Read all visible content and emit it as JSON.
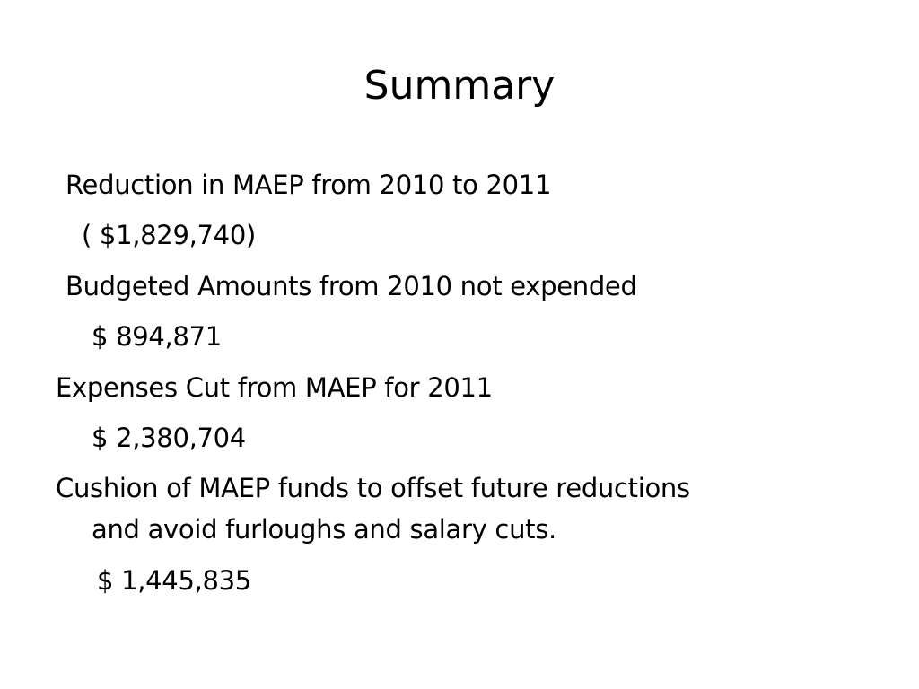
{
  "slide": {
    "title": "Summary",
    "lines": [
      "Reduction in MAEP from 2010  to 2011",
      "( $1,829,740)",
      "Budgeted Amounts from 2010 not expended",
      "$ 894,871",
      "Expenses Cut from MAEP for 2011",
      "$ 2,380,704",
      "Cushion of MAEP funds to offset future reductions",
      "and avoid furloughs and salary cuts.",
      "$ 1,445,835"
    ]
  }
}
